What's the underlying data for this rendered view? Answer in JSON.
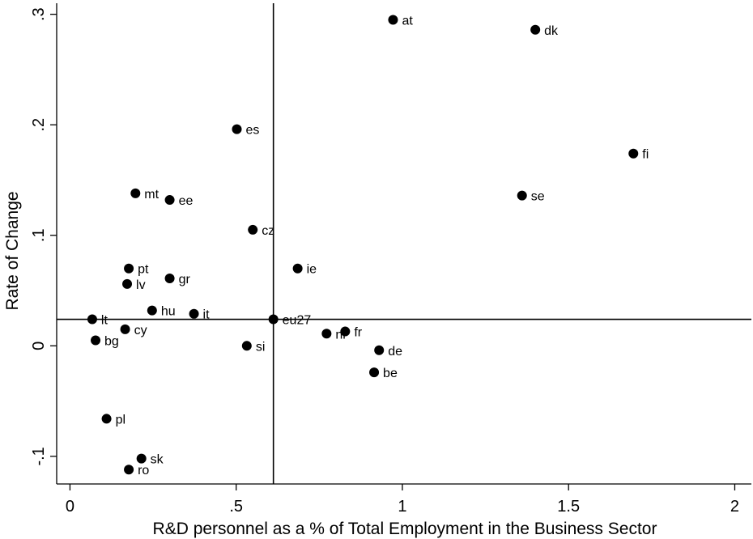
{
  "chart_data": {
    "type": "scatter",
    "title": "",
    "xlabel": "R&D personnel as a % of Total Employment in the Business Sector",
    "ylabel": "Rate of Change",
    "xlim": [
      -0.04,
      2.05
    ],
    "ylim": [
      -0.125,
      0.31
    ],
    "x_ticks": [
      {
        "v": 0,
        "label": "0"
      },
      {
        "v": 0.5,
        "label": ".5"
      },
      {
        "v": 1,
        "label": "1"
      },
      {
        "v": 1.5,
        "label": "1.5"
      },
      {
        "v": 2,
        "label": "2"
      }
    ],
    "y_ticks": [
      {
        "v": -0.1,
        "label": "-.1"
      },
      {
        "v": 0,
        "label": "0"
      },
      {
        "v": 0.1,
        "label": ".1"
      },
      {
        "v": 0.2,
        "label": ".2"
      },
      {
        "v": 0.3,
        "label": ".3"
      }
    ],
    "reference_lines": {
      "x": 0.612,
      "y": 0.024
    },
    "grid": false,
    "points": [
      {
        "label": "at",
        "x": 0.972,
        "y": 0.295
      },
      {
        "label": "dk",
        "x": 1.4,
        "y": 0.286
      },
      {
        "label": "fi",
        "x": 1.695,
        "y": 0.174
      },
      {
        "label": "es",
        "x": 0.502,
        "y": 0.196
      },
      {
        "label": "se",
        "x": 1.36,
        "y": 0.136
      },
      {
        "label": "mt",
        "x": 0.197,
        "y": 0.138
      },
      {
        "label": "ee",
        "x": 0.3,
        "y": 0.132
      },
      {
        "label": "cz",
        "x": 0.55,
        "y": 0.105
      },
      {
        "label": "pt",
        "x": 0.177,
        "y": 0.07
      },
      {
        "label": "ie",
        "x": 0.685,
        "y": 0.07
      },
      {
        "label": "gr",
        "x": 0.3,
        "y": 0.061
      },
      {
        "label": "lv",
        "x": 0.172,
        "y": 0.056
      },
      {
        "label": "hu",
        "x": 0.247,
        "y": 0.032
      },
      {
        "label": "it",
        "x": 0.373,
        "y": 0.029
      },
      {
        "label": "lt",
        "x": 0.067,
        "y": 0.024
      },
      {
        "label": "eu27",
        "x": 0.612,
        "y": 0.024
      },
      {
        "label": "cy",
        "x": 0.166,
        "y": 0.015
      },
      {
        "label": "fr",
        "x": 0.828,
        "y": 0.013
      },
      {
        "label": "nl",
        "x": 0.772,
        "y": 0.011
      },
      {
        "label": "bg",
        "x": 0.077,
        "y": 0.005
      },
      {
        "label": "si",
        "x": 0.532,
        "y": 0.0
      },
      {
        "label": "de",
        "x": 0.93,
        "y": -0.004
      },
      {
        "label": "be",
        "x": 0.915,
        "y": -0.024
      },
      {
        "label": "pl",
        "x": 0.11,
        "y": -0.066
      },
      {
        "label": "sk",
        "x": 0.215,
        "y": -0.102
      },
      {
        "label": "ro",
        "x": 0.177,
        "y": -0.112
      }
    ]
  },
  "style": {
    "marker_color": "#000000",
    "line_color": "#000000",
    "background": "#ffffff"
  }
}
